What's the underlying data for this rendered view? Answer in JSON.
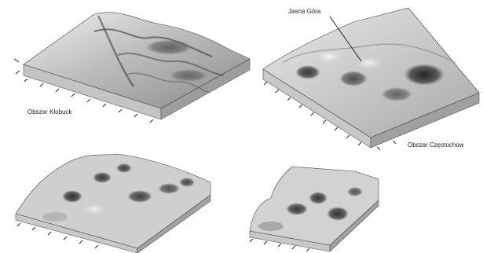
{
  "labels": {
    "klobuck": "Obszar Kłobuck",
    "jasna_gora": "Jasna Góra",
    "czestochowa": "Obszar Częstochow"
  },
  "colors": {
    "terrain_light": "#e6e6e6",
    "terrain_mid": "#9a9a9a",
    "terrain_dark": "#2b2b2b",
    "block_side": "#bdbdbd"
  }
}
